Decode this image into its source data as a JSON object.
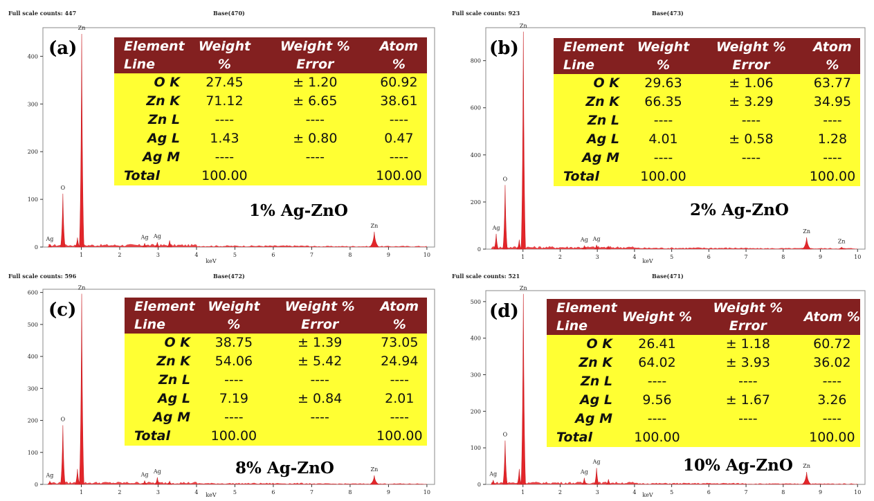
{
  "chart_data": [
    {
      "id": "a",
      "type": "bar",
      "header": {
        "full_scale": "Full scale counts: 447",
        "base": "Base(470)"
      },
      "tag": "(a)",
      "sample_label": "1% Ag-ZnO",
      "xlabel": "keV",
      "xlim": [
        0,
        10.2
      ],
      "ylim": [
        0,
        460
      ],
      "yticks": [
        0,
        100,
        200,
        300,
        400
      ],
      "xticks": [
        1,
        2,
        3,
        4,
        5,
        6,
        7,
        8,
        9,
        10
      ],
      "peaks": [
        {
          "x": 0.52,
          "y": 112,
          "label": "O"
        },
        {
          "x": 1.01,
          "y": 447,
          "label": "Zn"
        },
        {
          "x": 0.9,
          "y": 20,
          "label": ""
        },
        {
          "x": 2.65,
          "y": 8,
          "label": "Ag"
        },
        {
          "x": 2.98,
          "y": 10,
          "label": "Ag"
        },
        {
          "x": 3.3,
          "y": 14,
          "label": ""
        },
        {
          "x": 8.63,
          "y": 32,
          "label": "Zn"
        },
        {
          "x": 0.18,
          "y": 4,
          "label": "Ag"
        }
      ],
      "table": {
        "headers": [
          "Element Line",
          "Weight %",
          "Weight % Error",
          "Atom %"
        ],
        "rows": [
          [
            "O K",
            "27.45",
            "± 1.20",
            "60.92"
          ],
          [
            "Zn K",
            "71.12",
            "± 6.65",
            "38.61"
          ],
          [
            "Zn L",
            "----",
            "----",
            "----"
          ],
          [
            "Ag L",
            "1.43",
            "± 0.80",
            "0.47"
          ],
          [
            "Ag M",
            "----",
            "----",
            "----"
          ],
          [
            "Total",
            "100.00",
            "",
            "100.00"
          ]
        ]
      }
    },
    {
      "id": "b",
      "type": "bar",
      "header": {
        "full_scale": "Full scale counts: 923",
        "base": "Base(473)"
      },
      "tag": "(b)",
      "sample_label": "2% Ag-ZnO",
      "xlabel": "keV",
      "xlim": [
        0,
        10.2
      ],
      "ylim": [
        0,
        940
      ],
      "yticks": [
        0,
        200,
        400,
        600,
        800
      ],
      "xticks": [
        1,
        2,
        3,
        4,
        5,
        6,
        7,
        8,
        9,
        10
      ],
      "peaks": [
        {
          "x": 0.52,
          "y": 272,
          "label": "O"
        },
        {
          "x": 1.01,
          "y": 923,
          "label": "Zn"
        },
        {
          "x": 0.9,
          "y": 40,
          "label": ""
        },
        {
          "x": 0.28,
          "y": 65,
          "label": "Ag"
        },
        {
          "x": 2.65,
          "y": 14,
          "label": "Ag"
        },
        {
          "x": 2.98,
          "y": 18,
          "label": "Ag"
        },
        {
          "x": 3.3,
          "y": 12,
          "label": ""
        },
        {
          "x": 8.63,
          "y": 50,
          "label": "Zn"
        },
        {
          "x": 9.57,
          "y": 8,
          "label": "Zn"
        }
      ],
      "table": {
        "headers": [
          "Element Line",
          "Weight %",
          "Weight % Error",
          "Atom %"
        ],
        "rows": [
          [
            "O K",
            "29.63",
            "± 1.06",
            "63.77"
          ],
          [
            "Zn K",
            "66.35",
            "± 3.29",
            "34.95"
          ],
          [
            "Zn L",
            "----",
            "----",
            "----"
          ],
          [
            "Ag L",
            "4.01",
            "± 0.58",
            "1.28"
          ],
          [
            "Ag M",
            "----",
            "----",
            "----"
          ],
          [
            "Total",
            "100.00",
            "",
            "100.00"
          ]
        ]
      }
    },
    {
      "id": "c",
      "type": "bar",
      "header": {
        "full_scale": "Full scale counts: 596",
        "base": "Base(472)"
      },
      "tag": "(c)",
      "sample_label": "8% Ag-ZnO",
      "xlabel": "keV",
      "xlim": [
        0,
        10.2
      ],
      "ylim": [
        0,
        610
      ],
      "yticks": [
        0,
        100,
        200,
        300,
        400,
        500,
        600
      ],
      "xticks": [
        1,
        2,
        3,
        4,
        5,
        6,
        7,
        8,
        9,
        10
      ],
      "peaks": [
        {
          "x": 0.52,
          "y": 185,
          "label": "O"
        },
        {
          "x": 1.01,
          "y": 596,
          "label": "Zn"
        },
        {
          "x": 0.9,
          "y": 48,
          "label": ""
        },
        {
          "x": 0.18,
          "y": 10,
          "label": "Ag"
        },
        {
          "x": 2.65,
          "y": 12,
          "label": "Ag"
        },
        {
          "x": 2.98,
          "y": 22,
          "label": "Ag"
        },
        {
          "x": 3.3,
          "y": 10,
          "label": ""
        },
        {
          "x": 8.63,
          "y": 28,
          "label": "Zn"
        }
      ],
      "table": {
        "headers": [
          "Element Line",
          "Weight %",
          "Weight % Error",
          "Atom %"
        ],
        "rows": [
          [
            "O K",
            "38.75",
            "± 1.39",
            "73.05"
          ],
          [
            "Zn K",
            "54.06",
            "± 5.42",
            "24.94"
          ],
          [
            "Zn L",
            "----",
            "----",
            "----"
          ],
          [
            "Ag L",
            "7.19",
            "± 0.84",
            "2.01"
          ],
          [
            "Ag M",
            "----",
            "----",
            "----"
          ],
          [
            "Total",
            "100.00",
            "",
            "100.00"
          ]
        ]
      }
    },
    {
      "id": "d",
      "type": "bar",
      "header": {
        "full_scale": "Full scale counts: 521",
        "base": "Base(471)"
      },
      "tag": "(d)",
      "sample_label": "10% Ag-ZnO",
      "xlabel": "keV",
      "xlim": [
        0,
        10.2
      ],
      "ylim": [
        0,
        530
      ],
      "yticks": [
        0,
        100,
        200,
        300,
        400,
        500
      ],
      "xticks": [
        1,
        2,
        3,
        4,
        5,
        6,
        7,
        8,
        9,
        10
      ],
      "peaks": [
        {
          "x": 0.52,
          "y": 120,
          "label": "O"
        },
        {
          "x": 1.01,
          "y": 521,
          "label": "Zn"
        },
        {
          "x": 0.9,
          "y": 42,
          "label": ""
        },
        {
          "x": 0.2,
          "y": 12,
          "label": "Ag"
        },
        {
          "x": 2.65,
          "y": 18,
          "label": "Ag"
        },
        {
          "x": 2.98,
          "y": 45,
          "label": "Ag"
        },
        {
          "x": 3.3,
          "y": 14,
          "label": ""
        },
        {
          "x": 8.63,
          "y": 34,
          "label": "Zn"
        }
      ],
      "table": {
        "headers": [
          "Element Line",
          "Weight %",
          "Weight % Error",
          "Atom %"
        ],
        "rows": [
          [
            "O K",
            "26.41",
            "± 1.18",
            "60.72"
          ],
          [
            "Zn K",
            "64.02",
            "± 3.93",
            "36.02"
          ],
          [
            "Zn L",
            "----",
            "----",
            "----"
          ],
          [
            "Ag L",
            "9.56",
            "± 1.67",
            "3.26"
          ],
          [
            "Ag M",
            "----",
            "----",
            "----"
          ],
          [
            "Total",
            "100.00",
            "",
            "100.00"
          ]
        ]
      }
    }
  ]
}
